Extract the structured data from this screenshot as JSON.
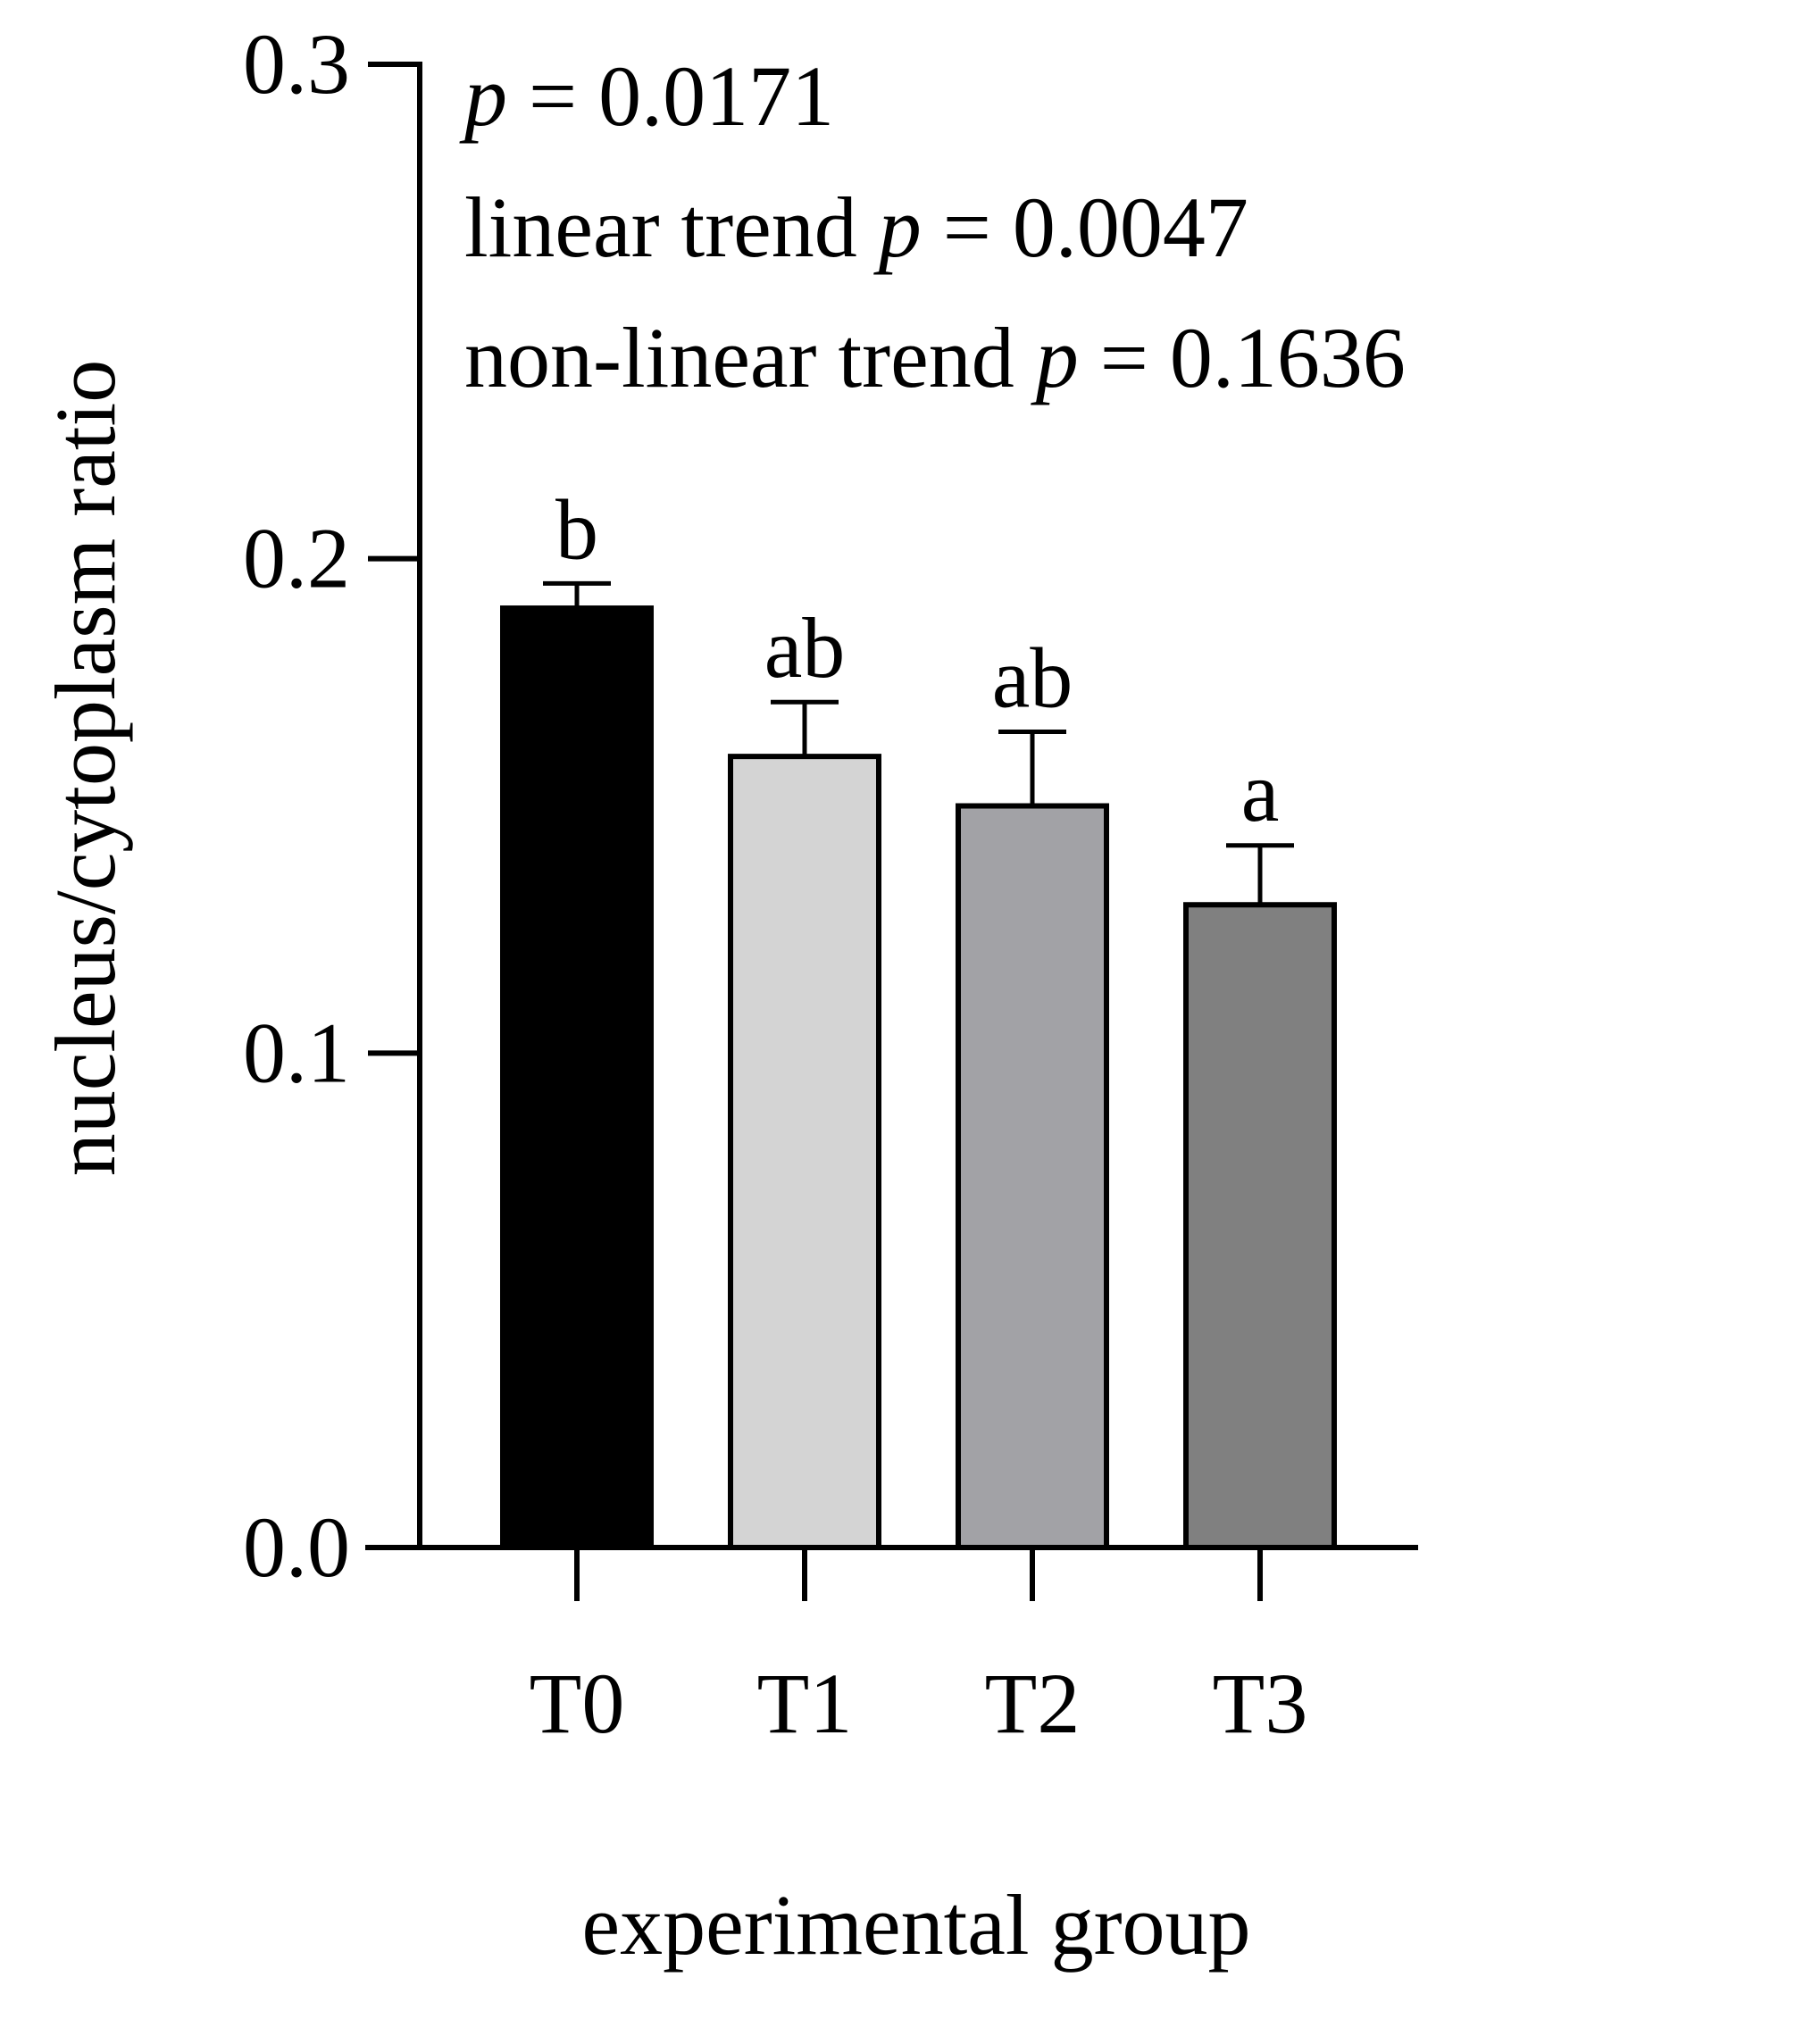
{
  "chart_data": {
    "type": "bar",
    "title": "",
    "xlabel": "experimental group",
    "ylabel": "nucleus/cytoplasm ratio",
    "ylim": [
      0.0,
      0.3
    ],
    "yticks": [
      "0.0",
      "0.1",
      "0.2",
      "0.3"
    ],
    "grid": false,
    "categories": [
      "T0",
      "T1",
      "T2",
      "T3"
    ],
    "values": [
      0.19,
      0.16,
      0.15,
      0.13
    ],
    "errors": [
      0.005,
      0.011,
      0.015,
      0.012
    ],
    "colors": [
      "#000000",
      "#d4d4d4",
      "#a2a2a6",
      "#808080"
    ],
    "significance_letters": [
      "b",
      "ab",
      "ab",
      "a"
    ],
    "annotations": [
      {
        "prefix": "",
        "italic": "p",
        "suffix": " = 0.0171"
      },
      {
        "prefix": "linear trend ",
        "italic": "p",
        "suffix": " = 0.0047"
      },
      {
        "prefix": "non-linear trend ",
        "italic": "p",
        "suffix": " = 0.1636"
      }
    ]
  }
}
